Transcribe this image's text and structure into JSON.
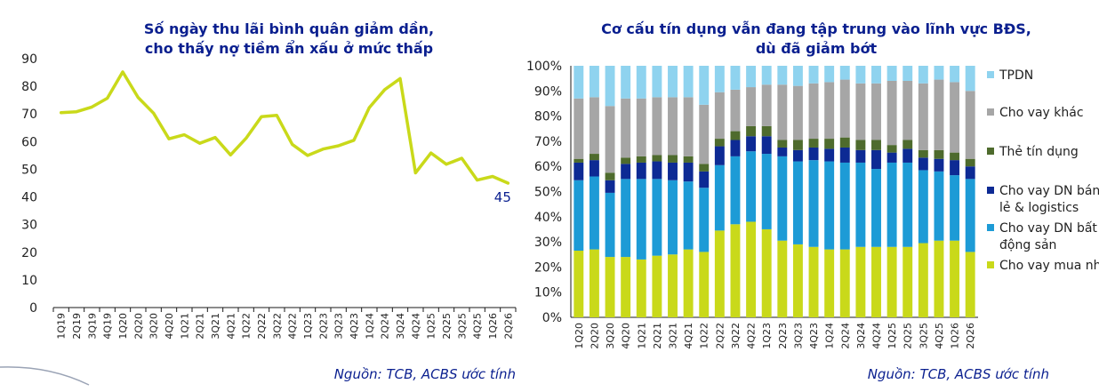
{
  "chart_data": [
    {
      "type": "line",
      "title": "Số ngày thu lãi bình quân giảm dần,\ncho thấy nợ tiềm ẩn xấu ở mức thấp",
      "categories": [
        "1Q19",
        "2Q19",
        "3Q19",
        "4Q19",
        "1Q20",
        "2Q20",
        "3Q20",
        "4Q20",
        "1Q21",
        "2Q21",
        "3Q21",
        "4Q21",
        "1Q22",
        "2Q22",
        "3Q22",
        "4Q22",
        "1Q23",
        "2Q23",
        "3Q23",
        "4Q23",
        "1Q24",
        "2Q24",
        "3Q24",
        "4Q24",
        "1Q25",
        "2Q25",
        "3Q25",
        "4Q25",
        "1Q26",
        "2Q26"
      ],
      "values": [
        70.5,
        70.8,
        72.5,
        75.7,
        85.2,
        76.0,
        70.3,
        61.0,
        62.5,
        59.4,
        61.5,
        55.2,
        61.2,
        69.0,
        69.5,
        59.0,
        55.0,
        57.3,
        58.5,
        60.5,
        72.3,
        78.8,
        82.8,
        48.7,
        55.9,
        51.8,
        54.0,
        46.1,
        47.4,
        45
      ],
      "ylim": [
        0,
        90
      ],
      "yticks": [
        0,
        10,
        20,
        30,
        40,
        50,
        60,
        70,
        80,
        90
      ],
      "end_label": "45",
      "line_color": "#c9d91a",
      "grid": false,
      "source": "Nguồn: TCB, ACBS ước tính"
    },
    {
      "type": "bar",
      "stacked": true,
      "title": "Cơ cấu tín dụng vẫn đang tập trung vào lĩnh vực BĐS,\ndù đã giảm bớt",
      "categories": [
        "1Q20",
        "2Q20",
        "3Q20",
        "4Q20",
        "1Q21",
        "2Q21",
        "3Q21",
        "4Q21",
        "1Q22",
        "2Q22",
        "3Q22",
        "4Q22",
        "1Q23",
        "2Q23",
        "3Q23",
        "4Q23",
        "1Q24",
        "2Q24",
        "3Q24",
        "4Q24",
        "1Q25",
        "2Q25",
        "3Q25",
        "4Q25",
        "1Q26",
        "2Q26"
      ],
      "yticks": [
        "0%",
        "10%",
        "20%",
        "30%",
        "40%",
        "50%",
        "60%",
        "70%",
        "80%",
        "90%",
        "100%"
      ],
      "ylim": [
        0,
        100
      ],
      "legend_position": "right",
      "series": [
        {
          "name": "Cho vay mua nhà",
          "color": "#c9d91a",
          "values": [
            26.5,
            27.0,
            24.0,
            24.0,
            23.0,
            24.5,
            25.0,
            27.0,
            26.0,
            34.5,
            37.0,
            38.0,
            35.0,
            30.5,
            29.0,
            28.0,
            27.0,
            27.0,
            28.0,
            28.0,
            28.0,
            28.0,
            29.5,
            30.5,
            30.5,
            26.0
          ]
        },
        {
          "name": "Cho vay DN bất\nđộng sản",
          "color": "#1d9bd6",
          "values": [
            28.0,
            29.0,
            25.5,
            31.0,
            32.0,
            30.5,
            29.5,
            27.0,
            25.5,
            26.0,
            27.0,
            28.0,
            30.0,
            33.5,
            33.0,
            34.5,
            35.0,
            34.5,
            33.5,
            31.0,
            33.5,
            33.5,
            29.0,
            27.5,
            26.0,
            29.0
          ]
        },
        {
          "name": "Cho vay DN bán\nlẻ & logistics",
          "color": "#0d2a94",
          "values": [
            7.0,
            6.5,
            5.0,
            6.0,
            6.5,
            7.0,
            7.0,
            7.5,
            6.5,
            7.5,
            6.5,
            6.0,
            7.0,
            3.5,
            4.5,
            5.0,
            5.0,
            6.0,
            5.0,
            7.5,
            4.0,
            5.5,
            5.0,
            5.0,
            6.0,
            5.0
          ]
        },
        {
          "name": "Thẻ tín dụng",
          "color": "#4e6b2d",
          "values": [
            1.5,
            2.5,
            3.0,
            2.5,
            2.5,
            2.5,
            3.0,
            2.5,
            3.0,
            3.0,
            3.5,
            4.0,
            4.0,
            3.0,
            4.0,
            3.5,
            4.0,
            4.0,
            4.0,
            4.0,
            3.0,
            3.5,
            3.0,
            3.5,
            3.0,
            3.0
          ]
        },
        {
          "name": "Cho vay khác",
          "color": "#a6a6a6",
          "values": [
            24.0,
            22.5,
            26.5,
            23.5,
            23.0,
            23.0,
            23.0,
            23.5,
            23.5,
            18.5,
            16.5,
            15.5,
            16.5,
            22.0,
            21.5,
            22.0,
            22.5,
            23.0,
            22.5,
            22.5,
            25.5,
            23.5,
            26.5,
            28.0,
            28.0,
            27.0
          ]
        },
        {
          "name": "TPDN",
          "color": "#8fd3ef",
          "values": [
            13.0,
            12.5,
            16.0,
            13.0,
            13.0,
            12.5,
            12.5,
            12.5,
            15.5,
            10.5,
            9.5,
            8.5,
            7.5,
            7.5,
            8.0,
            7.0,
            6.5,
            5.5,
            7.0,
            7.0,
            6.0,
            6.0,
            7.0,
            5.5,
            6.5,
            10.0
          ]
        }
      ],
      "legend_order": [
        "TPDN",
        "Cho vay khác",
        "Thẻ tín dụng",
        "Cho vay DN bán\nlẻ & logistics",
        "Cho vay DN bất\nđộng sản",
        "Cho vay mua nhà"
      ],
      "source": "Nguồn: TCB, ACBS ước tính"
    }
  ]
}
